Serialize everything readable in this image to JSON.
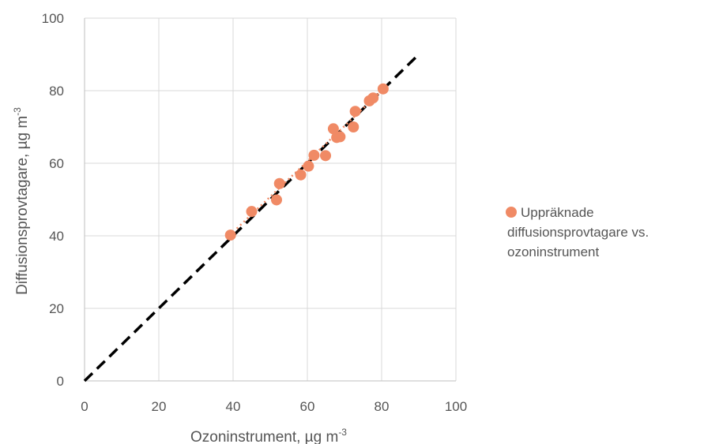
{
  "chart_data": {
    "type": "scatter",
    "xlabel": {
      "main": "Ozoninstrument, µg m",
      "sup": "-3"
    },
    "ylabel": {
      "main": "Diffusionsprovtagare, µg m",
      "sup": "-3"
    },
    "xlim": [
      0,
      100
    ],
    "ylim": [
      0,
      100
    ],
    "xticks": [
      "0",
      "20",
      "40",
      "60",
      "80",
      "100"
    ],
    "yticks": [
      "0",
      "20",
      "40",
      "60",
      "80",
      "100"
    ],
    "grid": true,
    "legend": {
      "placement": "right",
      "lines": [
        "Uppräknade",
        "diffusionsprovtagare vs.",
        "ozoninstrument"
      ]
    },
    "colors": {
      "points": "#F08A65",
      "reference_line": "#000000",
      "trend_line": "#F08A65",
      "grid": "#D9D9D9",
      "axis": "#BFBFBF"
    },
    "series": [
      {
        "name": "Uppräknade diffusionsprovtagare vs. ozoninstrument",
        "points": [
          [
            39.3,
            40.2
          ],
          [
            45.0,
            46.7
          ],
          [
            51.7,
            49.9
          ],
          [
            52.5,
            54.4
          ],
          [
            58.2,
            56.8
          ],
          [
            60.3,
            59.2
          ],
          [
            61.8,
            62.2
          ],
          [
            64.9,
            62.1
          ],
          [
            67.0,
            69.5
          ],
          [
            67.9,
            67.1
          ],
          [
            68.8,
            67.3
          ],
          [
            72.4,
            70.0
          ],
          [
            72.9,
            74.3
          ],
          [
            76.7,
            77.2
          ],
          [
            77.7,
            78.0
          ],
          [
            80.4,
            80.5
          ]
        ]
      }
    ],
    "reference_line": {
      "x": [
        0,
        90
      ],
      "y": [
        0,
        90
      ],
      "style": "dashed"
    },
    "trend_line": {
      "x": [
        41,
        80.5
      ],
      "y": [
        42,
        80.5
      ],
      "style": "dotted"
    }
  }
}
